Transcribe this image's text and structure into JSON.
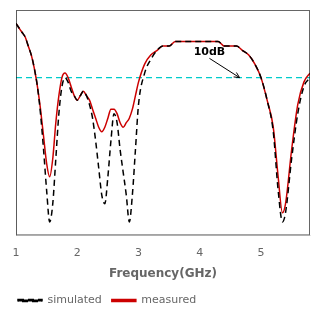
{
  "chart_data": {
    "type": "line",
    "xlabel": "Frequency(GHz)",
    "x": [
      1.0,
      1.05,
      1.1,
      1.15,
      1.2,
      1.25,
      1.3,
      1.35,
      1.4,
      1.45,
      1.5,
      1.55,
      1.6,
      1.65,
      1.7,
      1.75,
      1.8,
      1.85,
      1.9,
      1.95,
      2.0,
      2.05,
      2.1,
      2.15,
      2.2,
      2.25,
      2.3,
      2.35,
      2.4,
      2.45,
      2.5,
      2.55,
      2.6,
      2.65,
      2.7,
      2.75,
      2.8,
      2.85,
      2.9,
      2.95,
      3.0,
      3.1,
      3.2,
      3.3,
      3.4,
      3.5,
      3.6,
      3.7,
      3.8,
      3.9,
      4.0,
      4.1,
      4.2,
      4.3,
      4.4,
      4.5,
      4.6,
      4.7,
      4.8,
      4.9,
      5.0,
      5.1,
      5.2,
      5.28,
      5.35,
      5.4,
      5.5,
      5.6,
      5.7,
      5.8
    ],
    "series": [
      {
        "name": "simulated",
        "color": "#000000",
        "line_style": "dashed",
        "values": [
          2,
          1,
          0,
          -1,
          -3,
          -5,
          -8,
          -12,
          -18,
          -26,
          -35,
          -42,
          -38,
          -28,
          -18,
          -12,
          -10,
          -11,
          -13,
          -14,
          -15,
          -14,
          -13,
          -14,
          -16,
          -19,
          -24,
          -30,
          -36,
          -38,
          -32,
          -24,
          -18,
          -20,
          -26,
          -31,
          -36,
          -42,
          -36,
          -26,
          -16,
          -9,
          -6,
          -4,
          -3,
          -3,
          -2,
          -2,
          -2,
          -2,
          -2,
          -2,
          -2,
          -2,
          -3,
          -3,
          -3,
          -4,
          -5,
          -7,
          -10,
          -15,
          -22,
          -35,
          -42,
          -40,
          -28,
          -18,
          -12,
          -10
        ]
      },
      {
        "name": "measured",
        "color": "#CC0000",
        "line_style": "solid",
        "values": [
          2,
          1,
          0,
          -1,
          -3,
          -5,
          -8,
          -12,
          -17,
          -23,
          -29,
          -32,
          -28,
          -20,
          -14,
          -10,
          -9,
          -10,
          -12,
          -14,
          -15,
          -14,
          -13,
          -14,
          -15,
          -17,
          -19,
          -21,
          -22,
          -21,
          -19,
          -17,
          -17,
          -18,
          -20,
          -21,
          -20,
          -19,
          -17,
          -14,
          -11,
          -7,
          -5,
          -4,
          -3,
          -3,
          -2,
          -2,
          -2,
          -2,
          -2,
          -2,
          -2,
          -2,
          -3,
          -3,
          -3,
          -4,
          -5,
          -7,
          -10,
          -15,
          -21,
          -32,
          -40,
          -38,
          -26,
          -16,
          -11,
          -9
        ]
      }
    ],
    "hline": {
      "y": -10,
      "color": "#00CCCC",
      "line_style": "dashed"
    },
    "annotation": {
      "text": "10dB",
      "x": 3.9,
      "y": -5.5,
      "arrow_to": [
        4.65,
        -10
      ]
    },
    "xlim": [
      1,
      5.8
    ],
    "xticks": [
      1,
      2,
      3,
      4,
      5
    ],
    "ylim": [
      -45,
      5
    ],
    "tick_labels": "x",
    "grid": false,
    "legend": "lower left"
  }
}
